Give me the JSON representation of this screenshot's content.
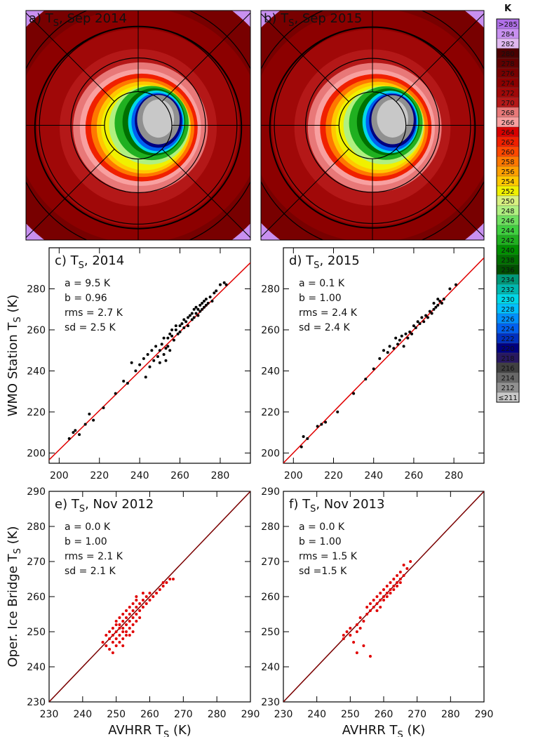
{
  "chart_data": [
    {
      "type": "map",
      "title": [
        "a) T",
        "S",
        ", Sep 2014"
      ]
    },
    {
      "type": "map",
      "title": [
        "b) T",
        "S",
        ", Sep 2015"
      ]
    },
    {
      "type": "scatter",
      "title": [
        "c) T",
        "S",
        ", 2014"
      ],
      "annotations": [
        "a = 9.5 K",
        "b = 0.96",
        "rms = 2.7 K",
        "sd = 2.5 K"
      ],
      "ylabel": [
        "WMO Station T",
        "S",
        " (K)"
      ],
      "xlim": [
        195,
        295
      ],
      "ylim": [
        195,
        300
      ],
      "xticks": [
        200,
        220,
        240,
        260,
        280
      ],
      "yticks": [
        200,
        220,
        240,
        260,
        280
      ],
      "color": "#000000",
      "line": {
        "intercept": 9.5,
        "slope": 0.96,
        "color": "#e00000"
      },
      "x": [
        205,
        207,
        208,
        210,
        213,
        215,
        217,
        222,
        228,
        232,
        234,
        236,
        238,
        240,
        242,
        243,
        244,
        245,
        246,
        247,
        248,
        249,
        250,
        250,
        251,
        252,
        252,
        253,
        253,
        254,
        254,
        255,
        255,
        256,
        256,
        257,
        258,
        258,
        259,
        260,
        260,
        261,
        262,
        262,
        263,
        264,
        264,
        265,
        266,
        266,
        267,
        267,
        268,
        268,
        269,
        269,
        270,
        270,
        271,
        271,
        272,
        272,
        273,
        273,
        274,
        275,
        276,
        277,
        278,
        280,
        282,
        283
      ],
      "values": [
        207,
        210,
        211,
        209,
        214,
        219,
        216,
        222,
        229,
        235,
        234,
        244,
        240,
        243,
        246,
        237,
        248,
        242,
        250,
        245,
        252,
        247,
        250,
        244,
        253,
        248,
        256,
        251,
        245,
        256,
        252,
        258,
        250,
        257,
        260,
        255,
        260,
        262,
        258,
        262,
        259,
        263,
        261,
        265,
        264,
        266,
        262,
        267,
        265,
        268,
        266,
        270,
        268,
        271,
        267,
        270,
        269,
        272,
        270,
        273,
        271,
        274,
        272,
        275,
        273,
        276,
        274,
        278,
        279,
        282,
        283,
        282
      ]
    },
    {
      "type": "scatter",
      "title": [
        "d) T",
        "S",
        ", 2015"
      ],
      "annotations": [
        "a = 0.1 K",
        "b = 1.00",
        "rms = 2.4 K",
        "sd = 2.4 K"
      ],
      "xlim": [
        195,
        295
      ],
      "ylim": [
        195,
        300
      ],
      "xticks": [
        200,
        220,
        240,
        260,
        280
      ],
      "yticks": [
        200,
        220,
        240,
        260,
        280
      ],
      "color": "#000000",
      "line": {
        "intercept": 0.1,
        "slope": 1.0,
        "color": "#e00000"
      },
      "x": [
        204,
        205,
        207,
        212,
        214,
        216,
        222,
        230,
        236,
        240,
        243,
        245,
        247,
        248,
        250,
        251,
        252,
        253,
        254,
        255,
        256,
        257,
        258,
        259,
        260,
        261,
        262,
        263,
        264,
        265,
        266,
        267,
        268,
        269,
        270,
        270,
        271,
        272,
        272,
        273,
        274,
        275,
        278,
        281
      ],
      "values": [
        203,
        208,
        207,
        213,
        214,
        215,
        220,
        229,
        236,
        241,
        246,
        250,
        249,
        252,
        251,
        256,
        253,
        255,
        257,
        252,
        258,
        256,
        259,
        258,
        262,
        261,
        264,
        263,
        266,
        264,
        267,
        266,
        269,
        268,
        270,
        273,
        271,
        272,
        275,
        274,
        273,
        275,
        280,
        282
      ]
    },
    {
      "type": "scatter",
      "title": [
        "e) T",
        "S",
        ", Nov 2012"
      ],
      "annotations": [
        "a = 0.0 K",
        "b = 1.00",
        "rms = 2.1 K",
        "sd = 2.1 K"
      ],
      "ylabel": [
        "Oper. Ice Bridge T",
        "S",
        " (K)"
      ],
      "xlabel": [
        "AVHRR T",
        "S",
        " (K)"
      ],
      "xlim": [
        230,
        290
      ],
      "ylim": [
        230,
        290
      ],
      "xticks": [
        230,
        240,
        250,
        260,
        270,
        280,
        290
      ],
      "yticks": [
        230,
        240,
        250,
        260,
        270,
        280,
        290
      ],
      "color": "#e00000",
      "line": {
        "intercept": 0.0,
        "slope": 1.0,
        "color": "#7a0000"
      },
      "x": [
        246,
        247,
        247,
        248,
        248,
        248,
        249,
        249,
        249,
        249,
        250,
        250,
        250,
        250,
        250,
        251,
        251,
        251,
        251,
        251,
        252,
        252,
        252,
        252,
        252,
        252,
        253,
        253,
        253,
        253,
        253,
        254,
        254,
        254,
        254,
        254,
        255,
        255,
        255,
        255,
        255,
        256,
        256,
        256,
        256,
        256,
        257,
        257,
        257,
        258,
        258,
        258,
        259,
        259,
        260,
        260,
        261,
        262,
        263,
        264,
        264,
        265,
        266,
        267
      ],
      "values": [
        247,
        246,
        249,
        248,
        250,
        245,
        251,
        247,
        249,
        244,
        252,
        248,
        250,
        246,
        253,
        251,
        249,
        254,
        247,
        252,
        250,
        253,
        248,
        255,
        251,
        246,
        252,
        256,
        249,
        254,
        250,
        253,
        255,
        251,
        257,
        249,
        258,
        252,
        254,
        256,
        250,
        259,
        253,
        257,
        255,
        260,
        256,
        258,
        254,
        259,
        257,
        261,
        258,
        260,
        259,
        261,
        260,
        261,
        262,
        263,
        264,
        264,
        265,
        265
      ]
    },
    {
      "type": "scatter",
      "title": [
        "f) T",
        "S",
        ", Nov 2013"
      ],
      "annotations": [
        "a = 0.0 K",
        "b = 1.00",
        "rms = 1.5 K",
        "sd =1.5 K"
      ],
      "xlabel": [
        "AVHRR T",
        "S",
        " (K)"
      ],
      "xlim": [
        230,
        290
      ],
      "ylim": [
        230,
        290
      ],
      "xticks": [
        230,
        240,
        250,
        260,
        270,
        280,
        290
      ],
      "yticks": [
        230,
        240,
        250,
        260,
        270,
        280,
        290
      ],
      "color": "#e00000",
      "line": {
        "intercept": 0.0,
        "slope": 1.0,
        "color": "#7a0000"
      },
      "x": [
        248,
        248,
        249,
        250,
        250,
        251,
        252,
        252,
        253,
        253,
        254,
        255,
        255,
        256,
        256,
        257,
        257,
        258,
        258,
        258,
        259,
        259,
        259,
        260,
        260,
        260,
        261,
        261,
        261,
        262,
        262,
        262,
        263,
        263,
        263,
        264,
        264,
        264,
        265,
        265,
        265,
        266,
        266,
        267,
        268,
        252,
        254,
        256
      ],
      "values": [
        249,
        248,
        250,
        249,
        251,
        247,
        250,
        252,
        251,
        254,
        253,
        255,
        257,
        256,
        258,
        257,
        259,
        258,
        260,
        256,
        259,
        261,
        257,
        260,
        262,
        259,
        261,
        263,
        260,
        262,
        264,
        261,
        263,
        265,
        262,
        264,
        266,
        263,
        265,
        267,
        264,
        266,
        269,
        268,
        270,
        244,
        246,
        243
      ]
    }
  ],
  "colorbar": {
    "unit": "K",
    "labels": [
      ">285",
      "284",
      "282",
      "280",
      "278",
      "276",
      "274",
      "272",
      "270",
      "268",
      "266",
      "264",
      "262",
      "260",
      "258",
      "256",
      "254",
      "252",
      "250",
      "248",
      "246",
      "244",
      "242",
      "240",
      "238",
      "236",
      "234",
      "232",
      "230",
      "228",
      "226",
      "224",
      "222",
      "220",
      "218",
      "216",
      "214",
      "212",
      "≤211"
    ],
    "colors": [
      "#b070e8",
      "#c890f0",
      "#e0b8f0",
      "#4a0000",
      "#600000",
      "#780000",
      "#8c0000",
      "#a00808",
      "#b41818",
      "#e87878",
      "#f8a0a0",
      "#d80000",
      "#f02000",
      "#ff4800",
      "#ff7800",
      "#ffa000",
      "#ffc800",
      "#f0f000",
      "#d8f080",
      "#b0f080",
      "#70e060",
      "#40d040",
      "#20b020",
      "#009000",
      "#007000",
      "#005000",
      "#009878",
      "#00b8b0",
      "#00d8e8",
      "#00c0ff",
      "#0090ff",
      "#0060f0",
      "#0030c0",
      "#000080",
      "#281860",
      "#404040",
      "#686868",
      "#909090",
      "#c8c8c8"
    ]
  }
}
